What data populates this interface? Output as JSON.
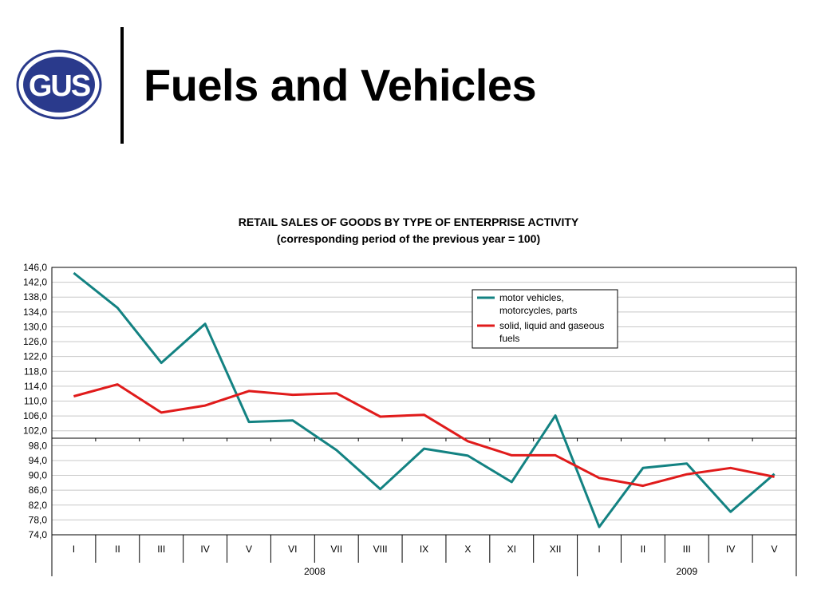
{
  "header": {
    "title": "Fuels and Vehicles",
    "logo_text": "GUS"
  },
  "chart_data": {
    "type": "line",
    "title": "RETAIL SALES OF GOODS BY TYPE OF ENTERPRISE ACTIVITY",
    "subtitle": "(corresponding period of the previous year = 100)",
    "categories": [
      "I",
      "II",
      "III",
      "IV",
      "V",
      "VI",
      "VII",
      "VIII",
      "IX",
      "X",
      "XI",
      "XII",
      "I",
      "II",
      "III",
      "IV",
      "V"
    ],
    "year_groups": [
      {
        "label": "2008",
        "count": 12
      },
      {
        "label": "2009",
        "count": 5
      }
    ],
    "yticks": [
      "146,0",
      "142,0",
      "138,0",
      "134,0",
      "130,0",
      "126,0",
      "122,0",
      "118,0",
      "114,0",
      "110,0",
      "106,0",
      "102,0",
      "98,0",
      "94,0",
      "90,0",
      "86,0",
      "82,0",
      "78,0",
      "74,0"
    ],
    "ylim": [
      74,
      146
    ],
    "baseline": 100,
    "grid": true,
    "legend_position": "top-right",
    "series": [
      {
        "name": "motor vehicles, motorcycles, parts",
        "color": "#138282",
        "values": [
          144.5,
          135.1,
          120.3,
          130.8,
          104.4,
          104.8,
          96.8,
          86.3,
          97.2,
          95.3,
          88.2,
          106.1,
          76.1,
          92.0,
          93.2,
          80.2,
          90.4
        ]
      },
      {
        "name": "solid, liquid and gaseous fuels",
        "color": "#e01b1b",
        "values": [
          111.3,
          114.5,
          106.9,
          108.8,
          112.7,
          111.7,
          112.1,
          105.8,
          106.3,
          99.2,
          95.4,
          95.4,
          89.3,
          87.2,
          90.3,
          92.0,
          89.6
        ]
      }
    ],
    "legend_lines": [
      [
        "motor vehicles,",
        "motorcycles, parts"
      ],
      [
        "solid, liquid and gaseous",
        "fuels"
      ]
    ]
  }
}
